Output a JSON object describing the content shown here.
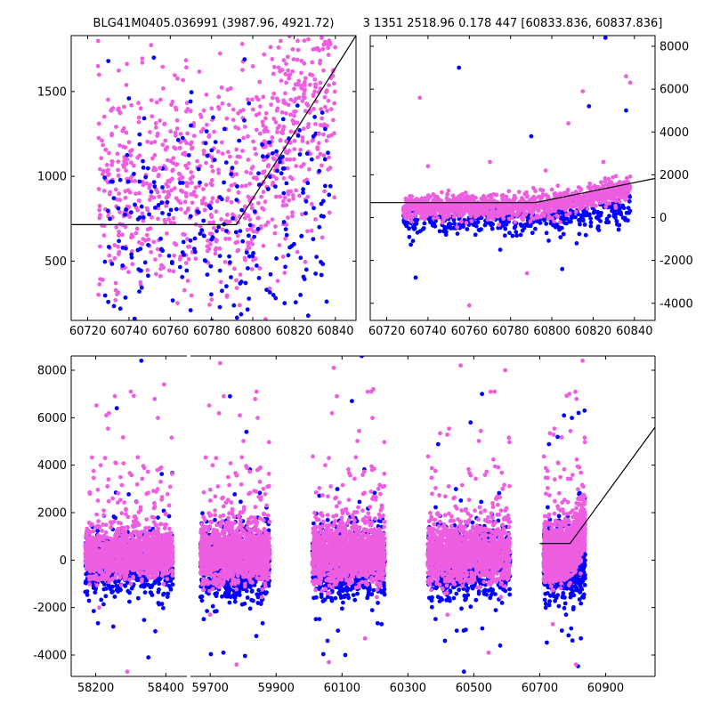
{
  "figure": {
    "title_left": "BLG41M0405.036991 (3987.96, 4921.72)",
    "title_right": "3 1351 2518.96 0.178 447 [60833.836, 60837.836]",
    "colors": {
      "blue": "#0000ff",
      "pink": "#ee5ee0",
      "line": "#000000"
    }
  },
  "chart_data": [
    {
      "id": "zoom",
      "type": "scatter",
      "title": "",
      "xlabel": "",
      "ylabel": "",
      "xlim": [
        60712,
        60850
      ],
      "ylim": [
        150,
        1830
      ],
      "xticks": [
        60720,
        60740,
        60760,
        60780,
        60800,
        60820,
        60840
      ],
      "yticks": [
        500,
        1000,
        1500
      ],
      "ytick_side": "left",
      "grid": false,
      "model_line": {
        "x": [
          60712,
          60792,
          60850
        ],
        "y": [
          715,
          715,
          1830
        ]
      },
      "series": [
        {
          "color": "blue",
          "x": [
            60730,
            60752,
            60770,
            60790,
            60798,
            60803,
            60810,
            60815,
            60820,
            60822,
            60826,
            60830,
            60835,
            60808,
            60796
          ],
          "y": [
            1680,
            1700,
            1300,
            1050,
            650,
            400,
            300,
            900,
            600,
            1240,
            450,
            1350,
            1100,
            1200,
            1690
          ]
        },
        {
          "color": "pink",
          "x": [
            60725,
            60735,
            60745,
            60755,
            60765,
            60775,
            60785,
            60795,
            60805,
            60812,
            60818,
            60825,
            60830,
            60834,
            60837,
            60832,
            60820,
            60810
          ],
          "y": [
            1650,
            1400,
            900,
            1050,
            1250,
            1350,
            1200,
            1150,
            1300,
            1400,
            1600,
            1800,
            1500,
            1750,
            1800,
            1250,
            1100,
            1000
          ]
        }
      ]
    },
    {
      "id": "recent",
      "type": "scatter",
      "title": "",
      "xlabel": "",
      "ylabel": "",
      "xlim": [
        60712,
        60850
      ],
      "ylim": [
        -4800,
        8500
      ],
      "xticks": [
        60720,
        60740,
        60760,
        60780,
        60800,
        60820,
        60840
      ],
      "yticks": [
        -4000,
        -2000,
        0,
        2000,
        4000,
        6000,
        8000
      ],
      "ytick_side": "right",
      "grid": false,
      "model_line": {
        "x": [
          60712,
          60792,
          60850
        ],
        "y": [
          700,
          700,
          1830
        ]
      },
      "series": [
        {
          "color": "blue",
          "x": [
            60734,
            60755,
            60775,
            60790,
            60805,
            60812,
            60818,
            60826,
            60836
          ],
          "y": [
            -2800,
            7000,
            -1500,
            3800,
            -2400,
            -1200,
            5200,
            8400,
            5000
          ]
        },
        {
          "color": "pink",
          "x": [
            60736,
            60740,
            60760,
            60770,
            60788,
            60797,
            60808,
            60815,
            60825,
            60836,
            60838
          ],
          "y": [
            5600,
            2400,
            -4100,
            2600,
            -2600,
            2200,
            4400,
            5900,
            2600,
            6600,
            6300
          ]
        }
      ]
    },
    {
      "id": "full",
      "type": "scatter",
      "title": "",
      "xlabel": "",
      "ylabel": "",
      "ylim": [
        -4900,
        8600
      ],
      "yticks": [
        -4000,
        -2000,
        0,
        2000,
        4000,
        6000,
        8000
      ],
      "ytick_side": "left",
      "grid": false,
      "broken_axis": true,
      "segments": [
        {
          "xlim": [
            58130,
            58460
          ],
          "xticks": [
            58200,
            58400
          ]
        },
        {
          "xlim": [
            59640,
            61050
          ],
          "xticks": [
            59700,
            59900,
            60100,
            60300,
            60500,
            60700,
            60900
          ]
        }
      ],
      "model_line": {
        "x": [
          60700,
          60792,
          61050
        ],
        "y": [
          700,
          700,
          5600
        ]
      },
      "seasons": [
        {
          "x0": 58170,
          "x1": 58420,
          "spread": 1100,
          "outliers": [
            [
              58230,
              6100
            ],
            [
              58260,
              6400
            ],
            [
              58300,
              7100
            ],
            [
              58330,
              8400
            ],
            [
              58395,
              7400
            ],
            [
              58250,
              -2800
            ],
            [
              58290,
              -4700
            ],
            [
              58350,
              -4100
            ],
            [
              58210,
              -2000
            ],
            [
              58370,
              -3000
            ]
          ]
        },
        {
          "x0": 59670,
          "x1": 59880,
          "spread": 1300,
          "outliers": [
            [
              59730,
              8300
            ],
            [
              59760,
              6900
            ],
            [
              59790,
              6100
            ],
            [
              59810,
              5400
            ],
            [
              59700,
              -2300
            ],
            [
              59740,
              -3900
            ],
            [
              59780,
              -4400
            ],
            [
              59840,
              -3200
            ]
          ]
        },
        {
          "x0": 60010,
          "x1": 60230,
          "spread": 1300,
          "outliers": [
            [
              60075,
              8100
            ],
            [
              60160,
              8600
            ],
            [
              60195,
              7200
            ],
            [
              60130,
              6700
            ],
            [
              60060,
              -4300
            ],
            [
              60110,
              -4000
            ],
            [
              60170,
              -3300
            ],
            [
              60220,
              -2700
            ]
          ]
        },
        {
          "x0": 60360,
          "x1": 60610,
          "spread": 1300,
          "outliers": [
            [
              60460,
              8200
            ],
            [
              60525,
              7000
            ],
            [
              60595,
              8000
            ],
            [
              60490,
              5800
            ],
            [
              60420,
              -2300
            ],
            [
              60470,
              -4700
            ],
            [
              60545,
              -3900
            ],
            [
              60580,
              -3600
            ]
          ]
        },
        {
          "x0": 60712,
          "x1": 60838,
          "spread": 1200,
          "outliers": [
            [
              60790,
              7000
            ],
            [
              60818,
              6200
            ],
            [
              60830,
              8400
            ],
            [
              60836,
              6300
            ],
            [
              60740,
              -2700
            ],
            [
              60780,
              -2300
            ],
            [
              60810,
              -4400
            ],
            [
              60825,
              -3300
            ]
          ]
        }
      ]
    }
  ]
}
